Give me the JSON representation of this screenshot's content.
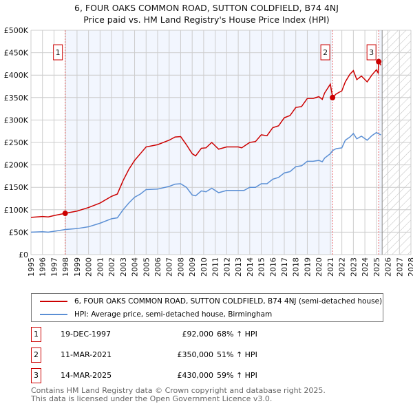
{
  "chart_data": {
    "type": "line",
    "title": "6, FOUR OAKS COMMON ROAD, SUTTON COLDFIELD, B74 4NJ",
    "subtitle": "Price paid vs. HM Land Registry's House Price Index (HPI)",
    "xlim": [
      1995,
      2028
    ],
    "ylim": [
      0,
      500000
    ],
    "x_ticks": [
      "1995",
      "1996",
      "1997",
      "1998",
      "1999",
      "2000",
      "2001",
      "2002",
      "2003",
      "2004",
      "2005",
      "2006",
      "2007",
      "2008",
      "2009",
      "2010",
      "2011",
      "2012",
      "2013",
      "2014",
      "2015",
      "2016",
      "2017",
      "2018",
      "2019",
      "2020",
      "2021",
      "2022",
      "2023",
      "2024",
      "2025",
      "2026",
      "2027",
      "2028"
    ],
    "y_ticks": [
      {
        "v": 0,
        "label": "£0"
      },
      {
        "v": 50000,
        "label": "£50K"
      },
      {
        "v": 100000,
        "label": "£100K"
      },
      {
        "v": 150000,
        "label": "£150K"
      },
      {
        "v": 200000,
        "label": "£200K"
      },
      {
        "v": 250000,
        "label": "£250K"
      },
      {
        "v": 300000,
        "label": "£300K"
      },
      {
        "v": 350000,
        "label": "£350K"
      },
      {
        "v": 400000,
        "label": "£400K"
      },
      {
        "v": 450000,
        "label": "£450K"
      },
      {
        "v": 500000,
        "label": "£500K"
      }
    ],
    "grid": true,
    "series": [
      {
        "name": "6, FOUR OAKS COMMON ROAD, SUTTON COLDFIELD, B74 4NJ (semi-detached house)",
        "color": "#cc0000",
        "x": [
          1995,
          1996,
          1996.5,
          1997,
          1997.97,
          1999,
          2000,
          2001,
          2002,
          2002.5,
          2003,
          2003.5,
          2004,
          2004.5,
          2005,
          2006,
          2007,
          2007.5,
          2008,
          2008.5,
          2009,
          2009.3,
          2009.8,
          2010.2,
          2010.7,
          2011.3,
          2012,
          2013,
          2013.3,
          2014,
          2014.5,
          2015,
          2015.5,
          2016,
          2016.5,
          2017,
          2017.5,
          2018,
          2018.5,
          2019,
          2019.5,
          2020,
          2020.3,
          2020.5,
          2021,
          2021.2,
          2021.5,
          2022,
          2022.3,
          2022.7,
          2023,
          2023.3,
          2023.7,
          2024.2,
          2024.6,
          2025,
          2025.15,
          2025.2,
          2025.4
        ],
        "y": [
          83000,
          85000,
          84000,
          87000,
          92000,
          97000,
          105000,
          115000,
          130000,
          135000,
          165000,
          190000,
          210000,
          225000,
          240000,
          245000,
          255000,
          262000,
          263000,
          245000,
          225000,
          220000,
          237000,
          238000,
          250000,
          235000,
          240000,
          240000,
          238000,
          250000,
          252000,
          267000,
          265000,
          283000,
          287000,
          305000,
          310000,
          328000,
          330000,
          348000,
          348000,
          352000,
          346000,
          360000,
          380000,
          350000,
          358000,
          365000,
          385000,
          402000,
          410000,
          390000,
          398000,
          385000,
          400000,
          412000,
          405000,
          430000,
          422000
        ]
      },
      {
        "name": "HPI: Average price, semi-detached house, Birmingham",
        "color": "#5b8fd4",
        "x": [
          1995,
          1996,
          1996.5,
          1997,
          1998,
          1999,
          2000,
          2001,
          2002,
          2002.5,
          2003,
          2003.5,
          2004,
          2004.5,
          2005,
          2006,
          2007,
          2007.5,
          2008,
          2008.5,
          2009,
          2009.3,
          2009.8,
          2010.2,
          2010.7,
          2011.3,
          2012,
          2013,
          2013.5,
          2014,
          2014.5,
          2015,
          2015.5,
          2016,
          2016.5,
          2017,
          2017.5,
          2018,
          2018.5,
          2019,
          2019.5,
          2020,
          2020.3,
          2020.5,
          2021,
          2021.2,
          2021.5,
          2022,
          2022.3,
          2022.7,
          2023,
          2023.3,
          2023.7,
          2024.2,
          2024.6,
          2025,
          2025.3,
          2025.4
        ],
        "y": [
          50000,
          51000,
          50000,
          52000,
          56000,
          58000,
          62000,
          70000,
          80000,
          82000,
          100000,
          115000,
          128000,
          135000,
          145000,
          146000,
          152000,
          157000,
          158000,
          150000,
          133000,
          131000,
          142000,
          140000,
          148000,
          138000,
          143000,
          143000,
          143000,
          150000,
          150000,
          158000,
          158000,
          168000,
          172000,
          182000,
          185000,
          196000,
          198000,
          208000,
          208000,
          210000,
          207000,
          215000,
          225000,
          232000,
          236000,
          238000,
          255000,
          262000,
          270000,
          258000,
          264000,
          255000,
          265000,
          272000,
          268000,
          267000
        ]
      }
    ],
    "sales": [
      {
        "label": "1",
        "x": 1997.97,
        "date": "19-DEC-1997",
        "price": 92000,
        "price_label": "£92,000",
        "hpi": "68% ↑ HPI"
      },
      {
        "label": "2",
        "x": 2021.19,
        "date": "11-MAR-2021",
        "price": 350000,
        "price_label": "£350,000",
        "hpi": "51% ↑ HPI"
      },
      {
        "label": "3",
        "x": 2025.2,
        "date": "14-MAR-2025",
        "price": 430000,
        "price_label": "£430,000",
        "hpi": "59% ↑ HPI"
      }
    ],
    "forecast_start": 2025.5
  },
  "footer": {
    "line1": "Contains HM Land Registry data © Crown copyright and database right 2025.",
    "line2": "This data is licensed under the Open Government Licence v3.0."
  }
}
